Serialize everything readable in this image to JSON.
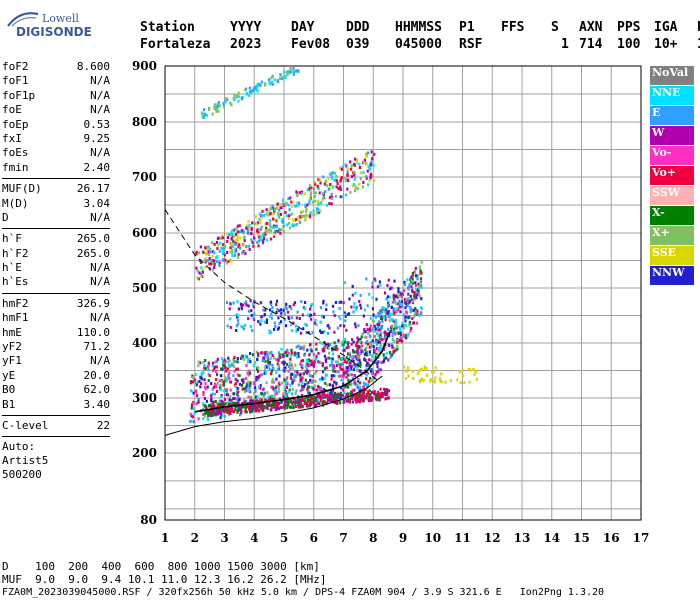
{
  "logo": {
    "line1": "Lowell",
    "line2": "DIGISONDE"
  },
  "header": {
    "cols": [
      {
        "h": "Station",
        "v": "Fortaleza"
      },
      {
        "h": "YYYY",
        "v": "2023"
      },
      {
        "h": "DAY",
        "v": "Fev08"
      },
      {
        "h": "DDD",
        "v": "039"
      },
      {
        "h": "HHMMSS",
        "v": "045000"
      },
      {
        "h": "P1",
        "v": "RSF"
      },
      {
        "h": "FFS",
        "v": ""
      },
      {
        "h": "S",
        "v": "1"
      },
      {
        "h": "AXN",
        "v": "714"
      },
      {
        "h": "PPS",
        "v": "100"
      },
      {
        "h": "IGA",
        "v": "10+"
      },
      {
        "h": "PS",
        "v": "11"
      }
    ]
  },
  "params": {
    "g1": [
      {
        "k": "foF2",
        "v": "8.600"
      },
      {
        "k": "foF1",
        "v": "N/A"
      },
      {
        "k": "foF1p",
        "v": "N/A"
      },
      {
        "k": "foE",
        "v": "N/A"
      },
      {
        "k": "foEp",
        "v": "0.53"
      },
      {
        "k": "fxI",
        "v": "9.25"
      },
      {
        "k": "foEs",
        "v": "N/A"
      },
      {
        "k": "fmin",
        "v": "2.40"
      }
    ],
    "g2": [
      {
        "k": "MUF(D)",
        "v": "26.17"
      },
      {
        "k": "M(D)",
        "v": "3.04"
      },
      {
        "k": "D",
        "v": "N/A"
      }
    ],
    "g3": [
      {
        "k": "h`F",
        "v": "265.0"
      },
      {
        "k": "h`F2",
        "v": "265.0"
      },
      {
        "k": "h`E",
        "v": "N/A"
      },
      {
        "k": "h`Es",
        "v": "N/A"
      }
    ],
    "g4": [
      {
        "k": "hmF2",
        "v": "326.9"
      },
      {
        "k": "hmF1",
        "v": "N/A"
      },
      {
        "k": "hmE",
        "v": "110.0"
      },
      {
        "k": "yF2",
        "v": "71.2"
      },
      {
        "k": "yF1",
        "v": "N/A"
      },
      {
        "k": "yE",
        "v": "20.0"
      },
      {
        "k": "B0",
        "v": "62.0"
      },
      {
        "k": "B1",
        "v": "3.40"
      }
    ],
    "g5": [
      {
        "k": "C-level",
        "v": "22"
      }
    ],
    "notes": [
      "Auto:",
      "Artist5",
      "500200"
    ]
  },
  "legend": [
    {
      "label": "NoVal",
      "color": "#808080"
    },
    {
      "label": "NNE",
      "color": "#00e0ff"
    },
    {
      "label": "E",
      "color": "#30a0ff"
    },
    {
      "label": "W",
      "color": "#b000b0"
    },
    {
      "label": "Vo-",
      "color": "#ff30c0"
    },
    {
      "label": "Vo+",
      "color": "#f00040"
    },
    {
      "label": "SSW",
      "color": "#ffb0b0"
    },
    {
      "label": "X-",
      "color": "#008000"
    },
    {
      "label": "X+",
      "color": "#80c060"
    },
    {
      "label": "SSE",
      "color": "#d8d800"
    },
    {
      "label": "NNW",
      "color": "#2020d0"
    }
  ],
  "footer": {
    "line1": "D    100  200  400  600  800 1000 1500 3000 [km]",
    "line2": "MUF  9.0  9.0  9.4 10.1 11.0 12.3 16.2 26.2 [MHz]",
    "line3": "FZA0M_2023039045000.RSF / 320fx256h 50 kHz 5.0 km / DPS-4 FZA0M 904 / 3.9 S 321.6 E   Ion2Png 1.3.20"
  },
  "chart_data": {
    "type": "scatter",
    "title": "",
    "xlabel": "",
    "ylabel": "",
    "x_unit_hint": "frequency (MHz)",
    "y_unit_hint": "virtual height (km)",
    "xlim": [
      1,
      17
    ],
    "ylim": [
      80,
      900
    ],
    "x_ticks": [
      1,
      2,
      3,
      4,
      5,
      6,
      7,
      8,
      9,
      10,
      11,
      12,
      13,
      14,
      15,
      16,
      17
    ],
    "y_ticks": [
      80,
      200,
      300,
      400,
      500,
      600,
      700,
      800,
      900
    ],
    "grid": true,
    "clusters": [
      {
        "name": "F2 trace",
        "freq": [
          1.8,
          9.6
        ],
        "height": [
          265,
          420
        ],
        "colors": [
          "#30a0ff",
          "#00e0ff",
          "#f00040",
          "#ff30c0",
          "#b000b0",
          "#008000",
          "#80c060",
          "#2020d0"
        ]
      },
      {
        "name": "F2 lower edge",
        "freq": [
          2.3,
          8.5
        ],
        "height": [
          265,
          300
        ],
        "colors": [
          "#f00040",
          "#008000",
          "#b000b0"
        ]
      },
      {
        "name": "Spread F",
        "freq": [
          3.0,
          9.0
        ],
        "height": [
          420,
          520
        ],
        "colors": [
          "#30a0ff",
          "#00e0ff",
          "#b000b0",
          "#2020d0"
        ]
      },
      {
        "name": "2nd hop",
        "freq": [
          2.0,
          8.0
        ],
        "height": [
          530,
          760
        ],
        "colors": [
          "#30a0ff",
          "#00e0ff",
          "#80c060",
          "#b000b0",
          "#f00040",
          "#d8d800"
        ]
      },
      {
        "name": "3rd hop",
        "freq": [
          2.2,
          5.5
        ],
        "height": [
          810,
          900
        ],
        "colors": [
          "#30a0ff",
          "#00e0ff",
          "#80c060"
        ]
      },
      {
        "name": "SSE tail",
        "freq": [
          9.0,
          11.5
        ],
        "height": [
          330,
          360
        ],
        "colors": [
          "#d8d800"
        ]
      }
    ],
    "curves": [
      {
        "name": "profile",
        "style": "solid",
        "points": [
          [
            1,
            232
          ],
          [
            2,
            248
          ],
          [
            3,
            257
          ],
          [
            4,
            263
          ],
          [
            5,
            272
          ],
          [
            6,
            282
          ],
          [
            7,
            298
          ],
          [
            7.8,
            318
          ],
          [
            8.3,
            340
          ]
        ]
      },
      {
        "name": "trace",
        "style": "solid",
        "points": [
          [
            2,
            275
          ],
          [
            3,
            284
          ],
          [
            4,
            290
          ],
          [
            5,
            297
          ],
          [
            6,
            306
          ],
          [
            7,
            322
          ],
          [
            7.8,
            350
          ],
          [
            8.3,
            385
          ],
          [
            8.55,
            420
          ]
        ]
      },
      {
        "name": "dashed",
        "style": "dashed",
        "points": [
          [
            1,
            642
          ],
          [
            2,
            560
          ],
          [
            3,
            510
          ],
          [
            4,
            475
          ],
          [
            5,
            445
          ],
          [
            6,
            412
          ],
          [
            7,
            378
          ],
          [
            7.6,
            355
          ],
          [
            8.2,
            330
          ]
        ]
      }
    ]
  }
}
